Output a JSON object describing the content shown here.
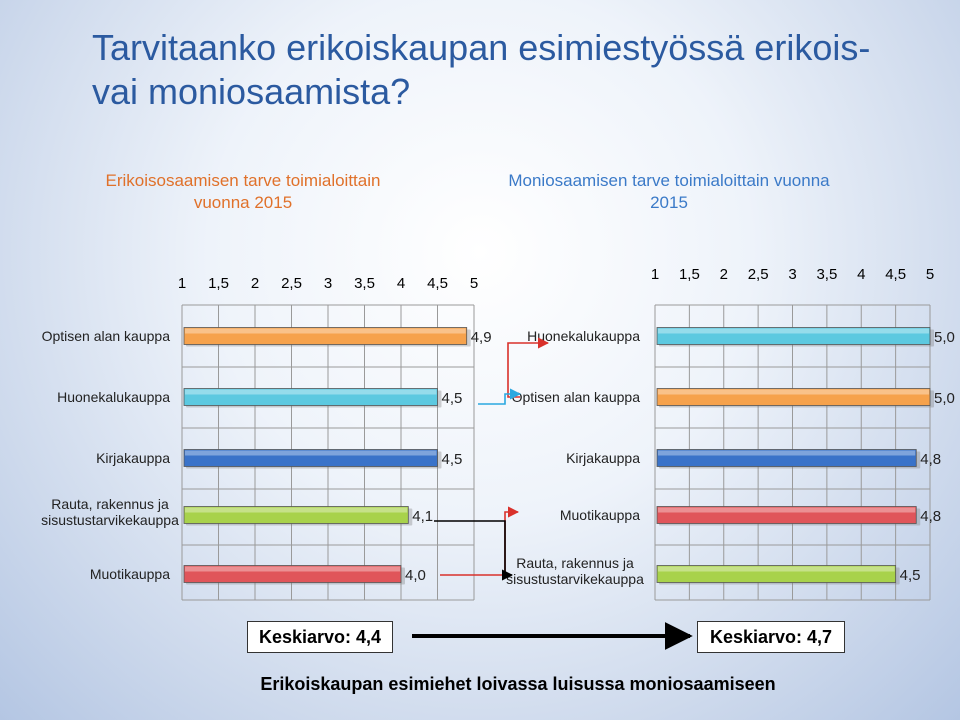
{
  "slide": {
    "title": "Tarvitaanko erikoiskaupan esimiestyössä erikois-vai moniosaamista?",
    "average_left": "Keskiarvo: 4,4",
    "average_right": "Keskiarvo: 4,7",
    "conclusion": "Erikoiskaupan esimiehet loivassa luisussa moniosaamiseen"
  },
  "colors": {
    "orange": "#f6a24c",
    "cyan": "#5cc9e0",
    "blue": "#3a73c9",
    "green": "#a8d24b",
    "red": "#e0555a",
    "arrow_red": "#d9312b",
    "arrow_blue": "#2aa8e0",
    "arrow_black": "#000000"
  },
  "chart_data": [
    {
      "type": "bar",
      "orientation": "horizontal",
      "title": "Erikoisosaamisen tarve toimialoittain vuonna 2015",
      "x_ticks": [
        "1",
        "1,5",
        "2",
        "2,5",
        "3",
        "3,5",
        "4",
        "4,5",
        "5"
      ],
      "xlim": [
        1,
        5
      ],
      "grid": true,
      "categories": [
        "Optisen alan kauppa",
        "Huonekalukauppa",
        "Kirjakauppa",
        "Rauta, rakennus ja sisustustarvikekauppa",
        "Muotikauppa"
      ],
      "values": [
        4.9,
        4.5,
        4.5,
        4.1,
        4.0
      ],
      "labels": [
        "4,9",
        "4,5",
        "4,5",
        "4,1",
        "4,0"
      ],
      "bar_colors": [
        "orange",
        "cyan",
        "blue",
        "green",
        "red"
      ]
    },
    {
      "type": "bar",
      "orientation": "horizontal",
      "title": "Moniosaamisen tarve toimialoittain vuonna 2015",
      "x_ticks": [
        "1",
        "1,5",
        "2",
        "2,5",
        "3",
        "3,5",
        "4",
        "4,5",
        "5"
      ],
      "xlim": [
        1,
        5
      ],
      "grid": true,
      "categories": [
        "Huonekalukauppa",
        "Optisen alan kauppa",
        "Kirjakauppa",
        "Muotikauppa",
        "Rauta, rakennus ja sisustustarvikekauppa"
      ],
      "values": [
        5.0,
        5.0,
        4.8,
        4.8,
        4.5
      ],
      "labels": [
        "5,0",
        "5,0",
        "4,8",
        "4,8",
        "4,5"
      ],
      "bar_colors": [
        "cyan",
        "orange",
        "blue",
        "red",
        "green"
      ]
    }
  ]
}
